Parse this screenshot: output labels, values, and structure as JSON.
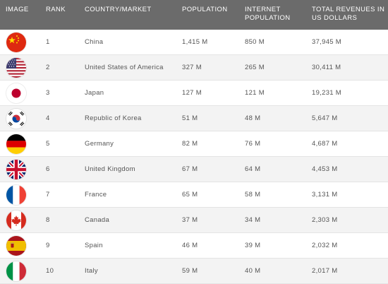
{
  "headers": {
    "image": "IMAGE",
    "rank": "RANK",
    "country": "COUNTRY/MARKET",
    "population": "POPULATION",
    "internet": "INTERNET\nPOPULATION",
    "revenue": "TOTAL REVENUES IN\nUS DOLLARS"
  },
  "rows": [
    {
      "flag": "china-flag-icon",
      "rank": "1",
      "country": "China",
      "population": "1,415 M",
      "internet": "850 M",
      "revenue": "37,945 M"
    },
    {
      "flag": "usa-flag-icon",
      "rank": "2",
      "country": "United States of America",
      "population": "327 M",
      "internet": "265 M",
      "revenue": "30,411 M"
    },
    {
      "flag": "japan-flag-icon",
      "rank": "3",
      "country": "Japan",
      "population": "127 M",
      "internet": "121 M",
      "revenue": "19,231 M"
    },
    {
      "flag": "korea-flag-icon",
      "rank": "4",
      "country": "Republic of Korea",
      "population": "51 M",
      "internet": "48 M",
      "revenue": "5,647 M"
    },
    {
      "flag": "germany-flag-icon",
      "rank": "5",
      "country": "Germany",
      "population": "82 M",
      "internet": "76 M",
      "revenue": "4,687 M"
    },
    {
      "flag": "uk-flag-icon",
      "rank": "6",
      "country": "United Kingdom",
      "population": "67 M",
      "internet": "64 M",
      "revenue": "4,453 M"
    },
    {
      "flag": "france-flag-icon",
      "rank": "7",
      "country": "France",
      "population": "65 M",
      "internet": "58 M",
      "revenue": "3,131 M"
    },
    {
      "flag": "canada-flag-icon",
      "rank": "8",
      "country": "Canada",
      "population": "37 M",
      "internet": "34 M",
      "revenue": "2,303 M"
    },
    {
      "flag": "spain-flag-icon",
      "rank": "9",
      "country": "Spain",
      "population": "46 M",
      "internet": "39 M",
      "revenue": "2,032 M"
    },
    {
      "flag": "italy-flag-icon",
      "rank": "10",
      "country": "Italy",
      "population": "59 M",
      "internet": "40 M",
      "revenue": "2,017 M"
    }
  ],
  "colors": {
    "header_bg": "#6b6b6b",
    "alt_row_bg": "#f3f3f3"
  }
}
